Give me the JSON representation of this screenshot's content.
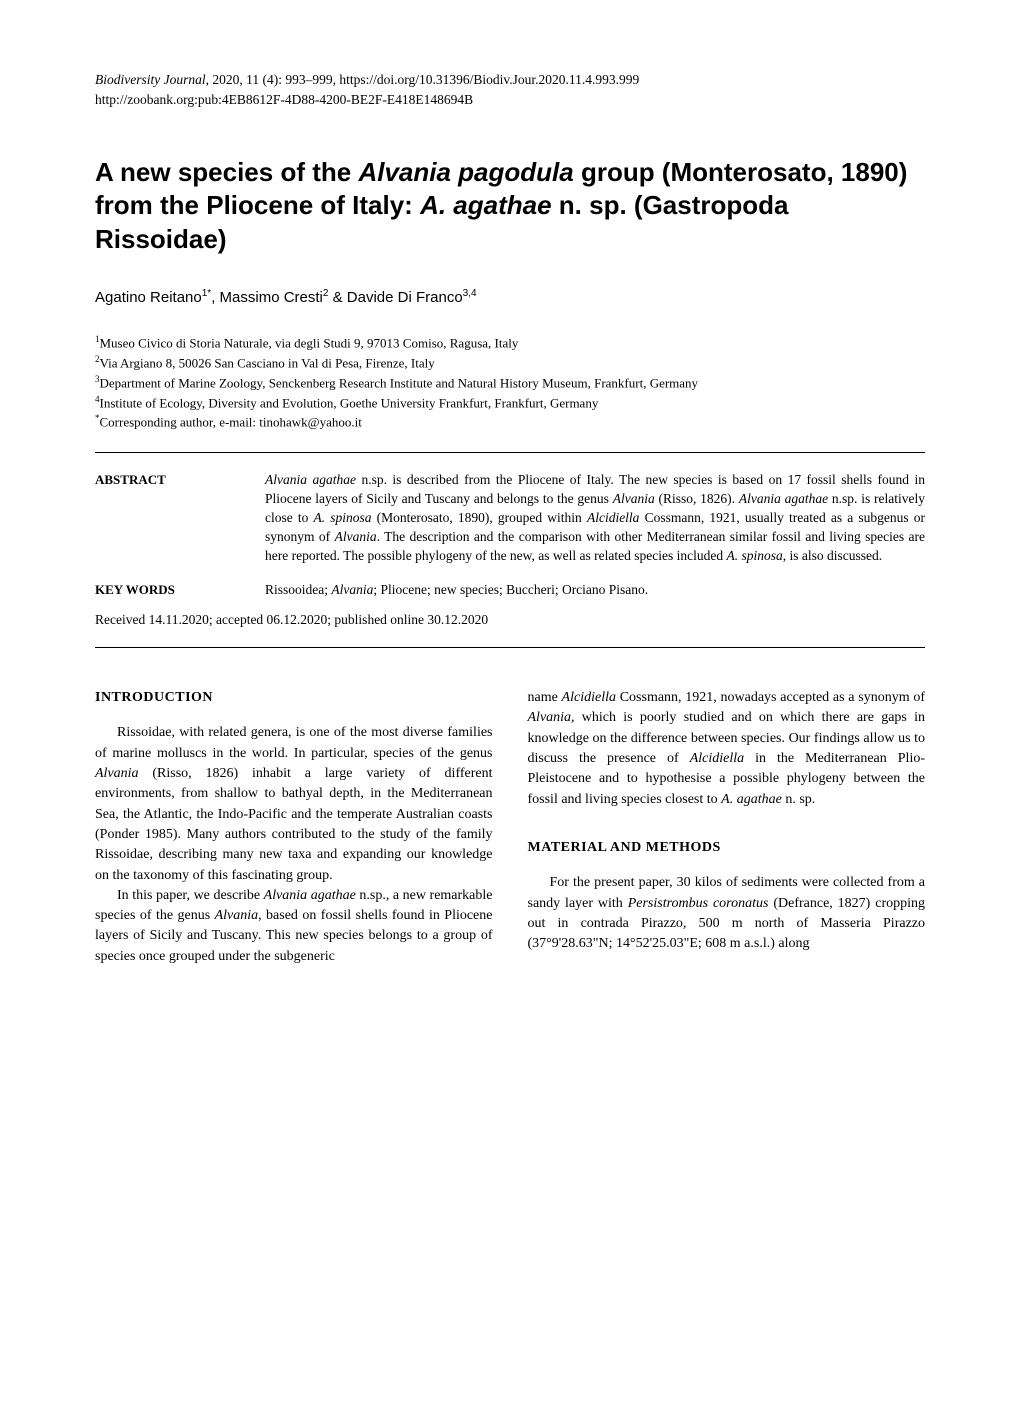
{
  "journal": {
    "name": "Biodiversity Journal",
    "year_vol": ", 2020, 11 (4): 993–999,   ",
    "doi": "https://doi.org/10.31396/Biodiv.Jour.2020.11.4.993.999",
    "zoobank": "http://zoobank.org:pub:4EB8612F-4D88-4200-BE2F-E418E148694B"
  },
  "title": {
    "part1": "A new species of the ",
    "italic1": "Alvania pagodula",
    "part2": " group (Monterosato, 1890) from the Pliocene of Italy: ",
    "italic2": "A. agathae",
    "part3": " n. sp. (Gastropoda Rissoidae)"
  },
  "authors": "Agatino Reitano1*, Massimo Cresti2 & Davide Di Franco3,4",
  "author_parts": {
    "a1": "Agatino Reitano",
    "s1": "1*",
    "a2": ", Massimo Cresti",
    "s2": "2",
    "a3": " & Davide Di Franco",
    "s3": "3,4"
  },
  "affiliations": [
    {
      "sup": "1",
      "text": "Museo Civico di Storia Naturale, via degli Studi 9, 97013 Comiso, Ragusa, Italy"
    },
    {
      "sup": "2",
      "text": "Via Argiano 8, 50026 San Casciano in Val di Pesa, Firenze, Italy"
    },
    {
      "sup": "3",
      "text": "Department of Marine Zoology, Senckenberg Research Institute and Natural History Museum, Frankfurt, Germany"
    },
    {
      "sup": "4",
      "text": "Institute of Ecology, Diversity and Evolution, Goethe University Frankfurt, Frankfurt, Germany"
    },
    {
      "sup": "*",
      "text": "Corresponding author, e-mail: tinohawk@yahoo.it"
    }
  ],
  "abstract": {
    "label": "ABSTRACT",
    "parts": [
      {
        "italic": true,
        "text": "Alvania agathae"
      },
      {
        "italic": false,
        "text": " n.sp. is described from the Pliocene of Italy. The new species is based on 17 fossil shells found in Pliocene layers of Sicily and Tuscany and belongs to the genus "
      },
      {
        "italic": true,
        "text": "Alvania"
      },
      {
        "italic": false,
        "text": " (Risso, 1826). "
      },
      {
        "italic": true,
        "text": "Alvania agathae"
      },
      {
        "italic": false,
        "text": " n.sp. is relatively close to "
      },
      {
        "italic": true,
        "text": "A. spinosa"
      },
      {
        "italic": false,
        "text": " (Monterosato, 1890), grouped within "
      },
      {
        "italic": true,
        "text": "Alcidiella"
      },
      {
        "italic": false,
        "text": " Cossmann, 1921, usually treated as a subgenus or synonym of "
      },
      {
        "italic": true,
        "text": "Alvania"
      },
      {
        "italic": false,
        "text": ". The description and the comparison with other Mediterranean similar fossil and living species are here reported. The possible phylogeny of the new, as well as related species included "
      },
      {
        "italic": true,
        "text": "A. spinosa"
      },
      {
        "italic": false,
        "text": ", is also discussed."
      }
    ]
  },
  "keywords": {
    "label": "KEY WORDS",
    "parts": [
      {
        "italic": false,
        "text": "Rissooidea; "
      },
      {
        "italic": true,
        "text": "Alvania"
      },
      {
        "italic": false,
        "text": "; Pliocene; new species; Buccheri; Orciano Pisano."
      }
    ]
  },
  "received": "Received 14.11.2020; accepted 06.12.2020; published online 30.12.2020",
  "left_col": {
    "heading": "INTRODUCTION",
    "p1_parts": [
      {
        "italic": false,
        "text": "Rissoidae, with related genera, is one of the most diverse families of marine molluscs in the world. In particular, species of the genus "
      },
      {
        "italic": true,
        "text": "Alvania"
      },
      {
        "italic": false,
        "text": " (Risso, 1826) inhabit a large variety of different environments, from shallow to bathyal depth, in the Mediterranean Sea, the Atlantic, the Indo-Pacific and the temperate Australian coasts (Ponder 1985). Many authors contributed to the study of the family Rissoidae, describing many new taxa and expanding our knowledge on the taxonomy of this fascinating group."
      }
    ],
    "p2_parts": [
      {
        "italic": false,
        "text": "In this paper, we describe "
      },
      {
        "italic": true,
        "text": "Alvania agathae"
      },
      {
        "italic": false,
        "text": " n.sp., a new remarkable species of the genus "
      },
      {
        "italic": true,
        "text": "Alvania"
      },
      {
        "italic": false,
        "text": ", based on fossil shells found in Pliocene layers of Sicily and Tuscany. This new species belongs to a group of species once grouped under the subgeneric"
      }
    ]
  },
  "right_col": {
    "p1_parts": [
      {
        "italic": false,
        "text": "name "
      },
      {
        "italic": true,
        "text": "Alcidiella"
      },
      {
        "italic": false,
        "text": " Cossmann, 1921, nowadays accepted as a synonym of "
      },
      {
        "italic": true,
        "text": "Alvania"
      },
      {
        "italic": false,
        "text": ", which is poorly studied and on which there are gaps in knowledge on the difference between species. Our findings allow us to discuss the presence of "
      },
      {
        "italic": true,
        "text": "Alcidiella"
      },
      {
        "italic": false,
        "text": " in the Mediterranean Plio-Pleistocene and to hypothesise a possible phylogeny between the fossil and living species closest to "
      },
      {
        "italic": true,
        "text": "A. agathae"
      },
      {
        "italic": false,
        "text": " n. sp."
      }
    ],
    "heading": "MATERIAL AND METHODS",
    "p2_parts": [
      {
        "italic": false,
        "text": "For the present paper, 30 kilos of sediments were collected from a sandy layer with "
      },
      {
        "italic": true,
        "text": "Persistrombus coronatus"
      },
      {
        "italic": false,
        "text": " (Defrance, 1827) cropping out in contrada Pirazzo, 500 m north of Masseria Pirazzo (37°9'28.63\"N; 14°52'25.03\"E; 608 m a.s.l.) along"
      }
    ]
  }
}
